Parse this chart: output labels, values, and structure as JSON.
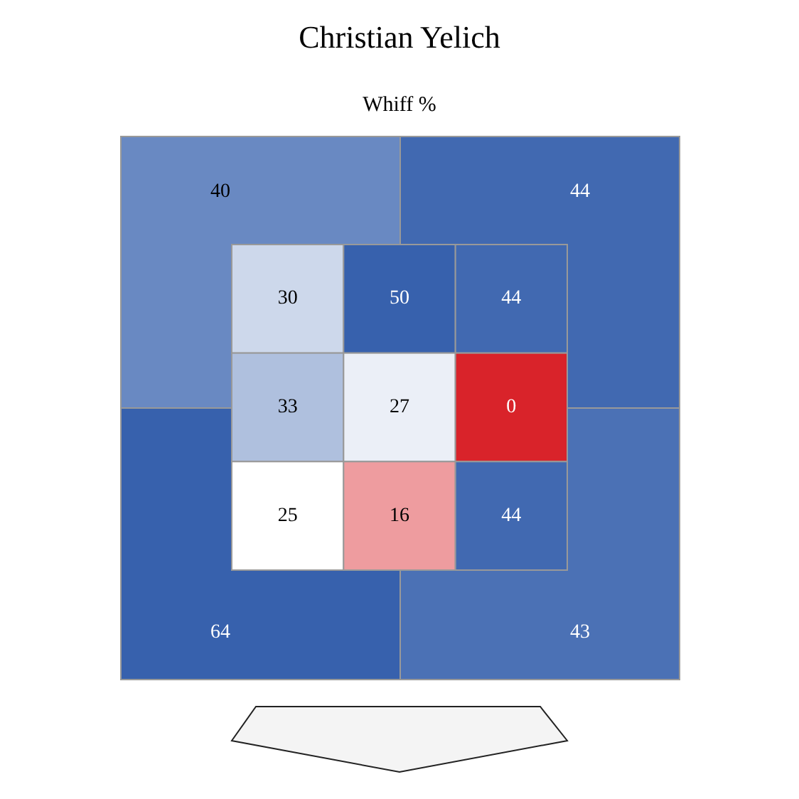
{
  "chart_data": [
    {
      "type": "heatmap",
      "title": "Christian Yelich",
      "subtitle": "Whiff %",
      "categories": [
        null,
        null
      ],
      "y_categories": [
        null,
        null
      ],
      "cells": [
        [
          40,
          44
        ],
        [
          64,
          43
        ]
      ],
      "data_labels": true
    },
    {
      "type": "heatmap",
      "categories": [
        null,
        null,
        null
      ],
      "y_categories": [
        null,
        null,
        null
      ],
      "cells": [
        [
          30,
          50,
          44
        ],
        [
          33,
          27,
          0
        ],
        [
          25,
          16,
          44
        ]
      ],
      "data_labels": true
    }
  ]
}
